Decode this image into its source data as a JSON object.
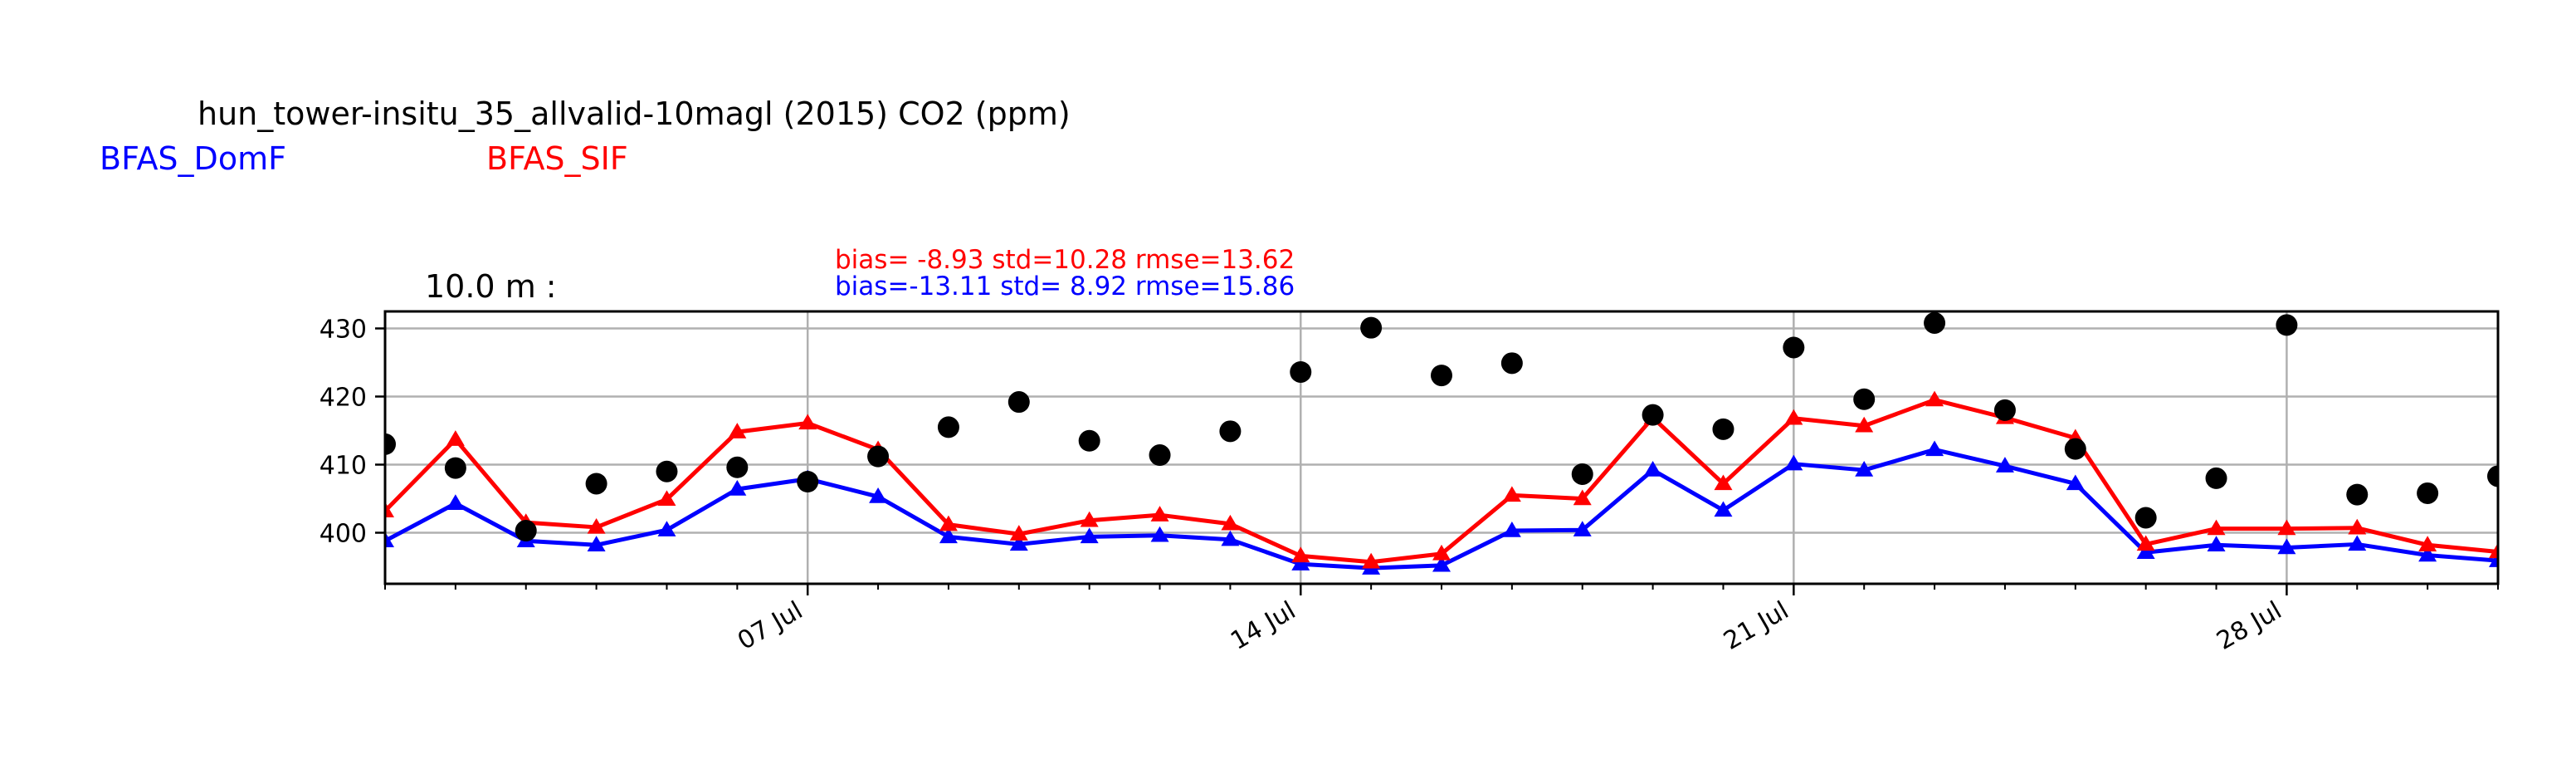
{
  "chart_data": {
    "type": "line",
    "title": "hun_tower-insitu_35_allvalid-10magl (2015) CO2 (ppm)",
    "panel_label": "10.0 m :",
    "ylim": [
      392.5,
      432.5
    ],
    "yticks": [
      400,
      410,
      420,
      430
    ],
    "xlim": [
      "2015-07-01",
      "2015-07-31"
    ],
    "xticks": [
      {
        "date": "2015-07-07",
        "label": "07 Jul"
      },
      {
        "date": "2015-07-14",
        "label": "14 Jul"
      },
      {
        "date": "2015-07-21",
        "label": "21 Jul"
      },
      {
        "date": "2015-07-28",
        "label": "28 Jul"
      }
    ],
    "grid": true,
    "legend_placement": "top-left",
    "x": [
      "2015-07-01",
      "2015-07-02",
      "2015-07-03",
      "2015-07-04",
      "2015-07-05",
      "2015-07-06",
      "2015-07-07",
      "2015-07-08",
      "2015-07-09",
      "2015-07-10",
      "2015-07-11",
      "2015-07-12",
      "2015-07-13",
      "2015-07-14",
      "2015-07-15",
      "2015-07-16",
      "2015-07-17",
      "2015-07-18",
      "2015-07-19",
      "2015-07-20",
      "2015-07-21",
      "2015-07-22",
      "2015-07-23",
      "2015-07-24",
      "2015-07-25",
      "2015-07-26",
      "2015-07-27",
      "2015-07-28",
      "2015-07-29",
      "2015-07-30",
      "2015-07-31"
    ],
    "observations": {
      "color": "#000000",
      "values": [
        413.0,
        409.5,
        400.3,
        407.2,
        409.0,
        409.6,
        407.5,
        411.2,
        415.5,
        419.2,
        413.5,
        411.4,
        414.9,
        423.6,
        430.1,
        423.1,
        424.9,
        408.6,
        417.3,
        415.2,
        427.2,
        419.6,
        430.8,
        418.0,
        412.3,
        402.2,
        408.0,
        430.5,
        405.6,
        405.8,
        408.3
      ]
    },
    "series": [
      {
        "name": "BFAS_DomF",
        "color": "#0000ff",
        "marker": "triangle",
        "values": [
          398.8,
          404.3,
          398.8,
          398.2,
          400.4,
          406.4,
          407.9,
          405.3,
          399.4,
          398.3,
          399.4,
          399.6,
          399.0,
          395.4,
          394.8,
          395.2,
          400.3,
          400.4,
          409.2,
          403.3,
          410.1,
          409.2,
          412.2,
          409.8,
          407.2,
          397.1,
          398.2,
          397.8,
          398.3,
          396.7,
          395.9
        ]
      },
      {
        "name": "BFAS_SIF",
        "color": "#ff0000",
        "marker": "triangle",
        "values": [
          403.2,
          413.7,
          401.5,
          400.8,
          404.9,
          414.8,
          416.1,
          412.2,
          401.2,
          399.8,
          401.8,
          402.6,
          401.3,
          396.6,
          395.7,
          396.9,
          405.5,
          405.0,
          416.9,
          407.2,
          416.8,
          415.7,
          419.5,
          416.9,
          413.9,
          398.3,
          400.6,
          400.6,
          400.7,
          398.2,
          397.2
        ]
      }
    ],
    "stats": [
      {
        "series": "BFAS_SIF",
        "text": "bias= -8.93 std=10.28 rmse=13.62",
        "color": "#ff0000"
      },
      {
        "series": "BFAS_DomF",
        "text": "bias=-13.11 std= 8.92 rmse=15.86",
        "color": "#0000ff"
      }
    ]
  }
}
